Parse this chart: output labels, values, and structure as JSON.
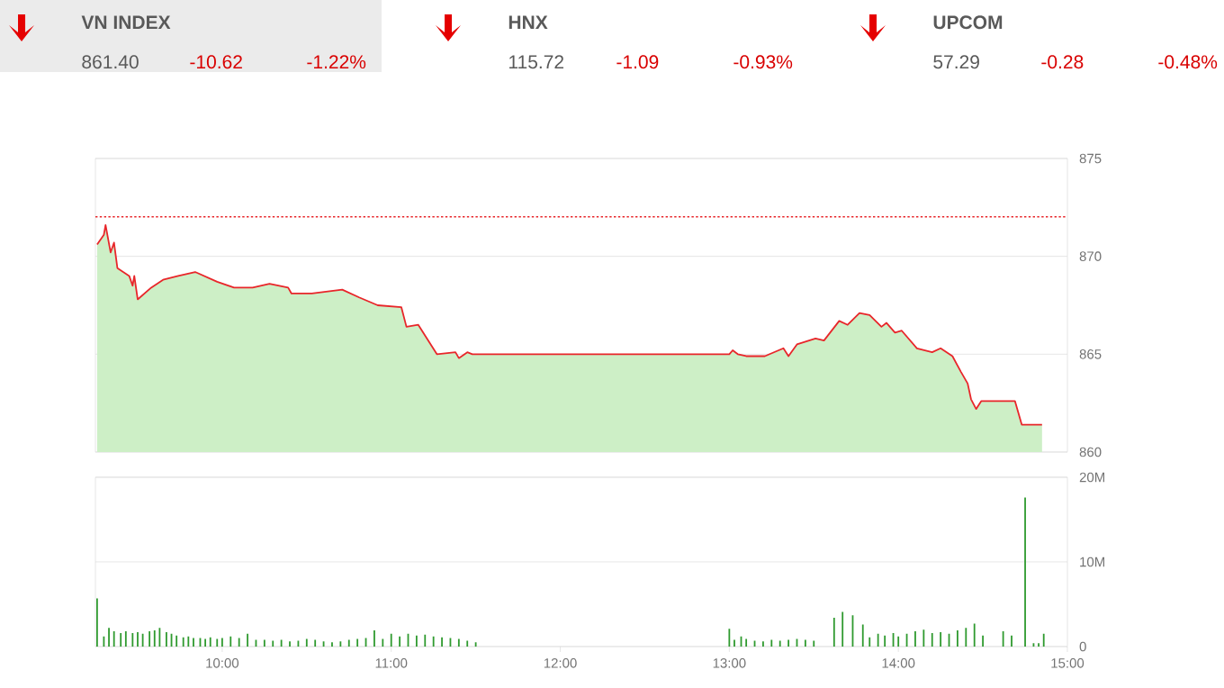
{
  "chart_data": [
    {
      "type": "other",
      "annotations": [
        "VN INDEX",
        "861.40",
        "-10.62",
        "-1.22%",
        "HNX",
        "115.72",
        "-1.09",
        "-0.93%",
        "UPCOM",
        "57.29",
        "-0.28",
        "-0.48%"
      ]
    },
    {
      "type": "area",
      "xlim": [
        9.25,
        15
      ],
      "ylim": [
        860,
        875
      ],
      "yticks": [
        860,
        865,
        870,
        875
      ],
      "grid": "y",
      "tick_labels": "y",
      "ref_lines": [
        {
          "axis": "y",
          "value": 872.02,
          "color": "#e8262a",
          "line_style": "dotted"
        }
      ],
      "series": [
        {
          "type": "area",
          "color": "#cdefc6",
          "x": [
            9.26,
            9.3,
            9.31,
            9.34,
            9.36,
            9.38,
            9.45,
            9.47,
            9.48,
            9.5,
            9.58,
            9.65,
            9.74,
            9.84,
            9.97,
            10.07,
            10.18,
            10.28,
            10.39,
            10.41,
            10.53,
            10.71,
            10.81,
            10.92,
            11.06,
            11.09,
            11.16,
            11.27,
            11.38,
            11.4,
            11.45,
            11.48,
            13.0,
            13.02,
            13.05,
            13.1,
            13.21,
            13.32,
            13.35,
            13.4,
            13.51,
            13.56,
            13.65,
            13.7,
            13.77,
            13.83,
            13.9,
            13.93,
            13.98,
            14.02,
            14.11,
            14.2,
            14.25,
            14.32,
            14.37,
            14.41,
            14.43,
            14.46,
            14.49,
            14.69,
            14.73,
            14.85
          ],
          "values": [
            870.6,
            871.1,
            871.6,
            870.2,
            870.7,
            869.4,
            869.0,
            868.5,
            869.0,
            867.8,
            868.4,
            868.8,
            869.0,
            869.2,
            868.7,
            868.4,
            868.4,
            868.6,
            868.4,
            868.1,
            868.1,
            868.3,
            867.9,
            867.5,
            867.4,
            866.4,
            866.5,
            865.0,
            865.1,
            864.8,
            865.1,
            865.0,
            865.0,
            865.2,
            865.0,
            864.9,
            864.9,
            865.3,
            864.9,
            865.5,
            865.8,
            865.7,
            866.7,
            866.5,
            867.1,
            867.0,
            866.4,
            866.6,
            866.1,
            866.2,
            865.3,
            865.1,
            865.3,
            864.9,
            864.1,
            863.5,
            862.7,
            862.2,
            862.6,
            862.6,
            861.4,
            861.4
          ]
        },
        {
          "type": "line",
          "color": "#e8262a",
          "x": [
            9.26,
            9.3,
            9.31,
            9.34,
            9.36,
            9.38,
            9.45,
            9.47,
            9.48,
            9.5,
            9.58,
            9.65,
            9.74,
            9.84,
            9.97,
            10.07,
            10.18,
            10.28,
            10.39,
            10.41,
            10.53,
            10.71,
            10.81,
            10.92,
            11.06,
            11.09,
            11.16,
            11.27,
            11.38,
            11.4,
            11.45,
            11.48,
            13.0,
            13.02,
            13.05,
            13.1,
            13.21,
            13.32,
            13.35,
            13.4,
            13.51,
            13.56,
            13.65,
            13.7,
            13.77,
            13.83,
            13.9,
            13.93,
            13.98,
            14.02,
            14.11,
            14.2,
            14.25,
            14.32,
            14.37,
            14.41,
            14.43,
            14.46,
            14.49,
            14.69,
            14.73,
            14.85
          ],
          "values": [
            870.6,
            871.1,
            871.6,
            870.2,
            870.7,
            869.4,
            869.0,
            868.5,
            869.0,
            867.8,
            868.4,
            868.8,
            869.0,
            869.2,
            868.7,
            868.4,
            868.4,
            868.6,
            868.4,
            868.1,
            868.1,
            868.3,
            867.9,
            867.5,
            867.4,
            866.4,
            866.5,
            865.0,
            865.1,
            864.8,
            865.1,
            865.0,
            865.0,
            865.2,
            865.0,
            864.9,
            864.9,
            865.3,
            864.9,
            865.5,
            865.8,
            865.7,
            866.7,
            866.5,
            867.1,
            867.0,
            866.4,
            866.6,
            866.1,
            866.2,
            865.3,
            865.1,
            865.3,
            864.9,
            864.1,
            863.5,
            862.7,
            862.2,
            862.6,
            862.6,
            861.4,
            861.4
          ]
        }
      ]
    },
    {
      "type": "bar",
      "xlim": [
        9.25,
        15
      ],
      "ylim": [
        0,
        20
      ],
      "grid": "y",
      "xticks": [
        {
          "value": 10,
          "label": "10:00"
        },
        {
          "value": 11,
          "label": "11:00"
        },
        {
          "value": 12,
          "label": "12:00"
        },
        {
          "value": 13,
          "label": "13:00"
        },
        {
          "value": 14,
          "label": "14:00"
        },
        {
          "value": 15,
          "label": "15:00"
        }
      ],
      "yticks": [
        0,
        {
          "value": 10,
          "label": "10M"
        },
        {
          "value": 20,
          "label": "20M"
        }
      ],
      "series": [
        {
          "color": "#2f9a2f",
          "x": [
            9.26,
            9.3,
            9.33,
            9.36,
            9.4,
            9.43,
            9.47,
            9.5,
            9.53,
            9.57,
            9.6,
            9.63,
            9.67,
            9.7,
            9.73,
            9.77,
            9.8,
            9.83,
            9.87,
            9.9,
            9.93,
            9.97,
            10.0,
            10.05,
            10.1,
            10.15,
            10.2,
            10.25,
            10.3,
            10.35,
            10.4,
            10.45,
            10.5,
            10.55,
            10.6,
            10.65,
            10.7,
            10.75,
            10.8,
            10.85,
            10.9,
            10.95,
            11.0,
            11.05,
            11.1,
            11.15,
            11.2,
            11.25,
            11.3,
            11.35,
            11.4,
            11.45,
            11.5,
            13.0,
            13.03,
            13.07,
            13.1,
            13.15,
            13.2,
            13.25,
            13.3,
            13.35,
            13.4,
            13.45,
            13.5,
            13.62,
            13.67,
            13.73,
            13.79,
            13.83,
            13.88,
            13.92,
            13.97,
            14.0,
            14.05,
            14.1,
            14.15,
            14.2,
            14.25,
            14.3,
            14.35,
            14.4,
            14.45,
            14.5,
            14.62,
            14.67,
            14.75,
            14.8,
            14.83,
            14.86
          ],
          "values": [
            5.7,
            1.2,
            2.2,
            1.8,
            1.6,
            1.8,
            1.6,
            1.7,
            1.5,
            1.8,
            1.9,
            2.2,
            1.7,
            1.5,
            1.3,
            1.1,
            1.2,
            1.0,
            1.0,
            0.9,
            1.1,
            0.9,
            1.0,
            1.2,
            1.0,
            1.5,
            0.8,
            0.8,
            0.7,
            0.8,
            0.6,
            0.7,
            0.9,
            0.8,
            0.6,
            0.5,
            0.6,
            0.8,
            0.9,
            1.0,
            1.9,
            0.9,
            1.5,
            1.2,
            1.5,
            1.3,
            1.4,
            1.2,
            1.1,
            1.0,
            0.9,
            0.7,
            0.5,
            2.1,
            0.8,
            1.2,
            0.9,
            0.7,
            0.6,
            0.8,
            0.7,
            0.8,
            0.9,
            0.8,
            0.7,
            3.4,
            4.1,
            3.7,
            2.6,
            1.1,
            1.5,
            1.3,
            1.6,
            1.2,
            1.5,
            1.8,
            2.0,
            1.6,
            1.7,
            1.5,
            1.9,
            2.2,
            2.7,
            1.3,
            1.8,
            1.3,
            17.6,
            0.4,
            0.4,
            1.5
          ]
        }
      ]
    }
  ]
}
